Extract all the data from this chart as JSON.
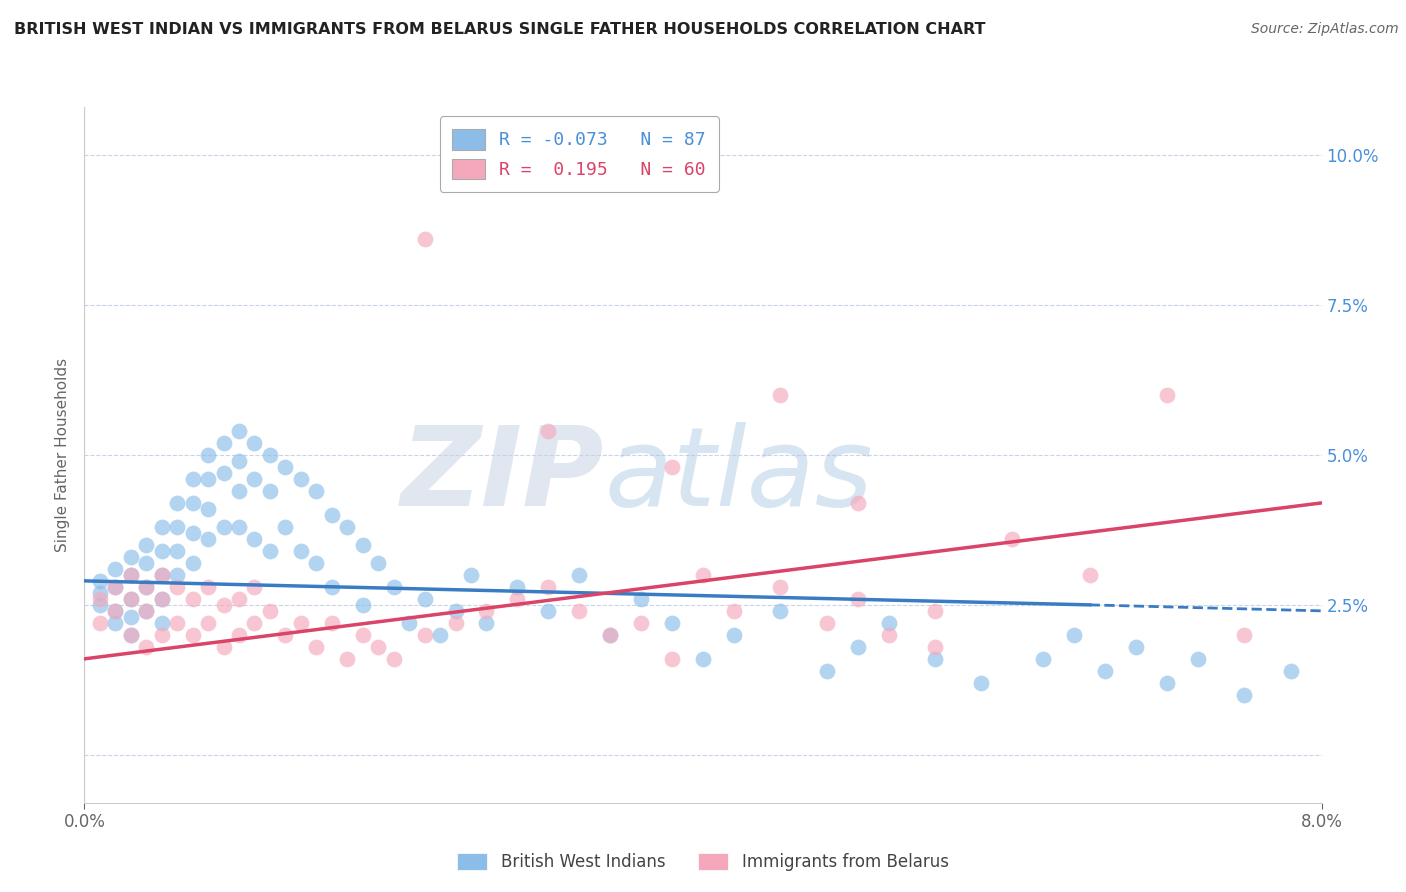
{
  "title": "BRITISH WEST INDIAN VS IMMIGRANTS FROM BELARUS SINGLE FATHER HOUSEHOLDS CORRELATION CHART",
  "source": "Source: ZipAtlas.com",
  "ylabel": "Single Father Households",
  "xlim": [
    0.0,
    0.08
  ],
  "ylim": [
    -0.008,
    0.108
  ],
  "yticks": [
    0.0,
    0.025,
    0.05,
    0.075,
    0.1
  ],
  "ytick_labels": [
    "",
    "2.5%",
    "5.0%",
    "7.5%",
    "10.0%"
  ],
  "xticks": [
    0.0,
    0.08
  ],
  "xtick_labels": [
    "0.0%",
    "8.0%"
  ],
  "legend_label_blue": "British West Indians",
  "legend_label_pink": "Immigrants from Belarus",
  "R_blue": -0.073,
  "N_blue": 87,
  "R_pink": 0.195,
  "N_pink": 60,
  "blue_color": "#8BBDE8",
  "pink_color": "#F5A8BC",
  "blue_line_color": "#3A7CC4",
  "pink_line_color": "#D94468",
  "watermark_color": "#D0DCF0",
  "grid_color": "#C8D4E8",
  "blue_scatter_x": [
    0.001,
    0.001,
    0.001,
    0.002,
    0.002,
    0.002,
    0.002,
    0.003,
    0.003,
    0.003,
    0.003,
    0.003,
    0.004,
    0.004,
    0.004,
    0.004,
    0.005,
    0.005,
    0.005,
    0.005,
    0.005,
    0.006,
    0.006,
    0.006,
    0.006,
    0.007,
    0.007,
    0.007,
    0.007,
    0.008,
    0.008,
    0.008,
    0.008,
    0.009,
    0.009,
    0.009,
    0.01,
    0.01,
    0.01,
    0.01,
    0.011,
    0.011,
    0.011,
    0.012,
    0.012,
    0.012,
    0.013,
    0.013,
    0.014,
    0.014,
    0.015,
    0.015,
    0.016,
    0.016,
    0.017,
    0.018,
    0.018,
    0.019,
    0.02,
    0.021,
    0.022,
    0.023,
    0.024,
    0.025,
    0.026,
    0.028,
    0.03,
    0.032,
    0.034,
    0.036,
    0.038,
    0.04,
    0.042,
    0.045,
    0.048,
    0.05,
    0.052,
    0.055,
    0.058,
    0.062,
    0.064,
    0.066,
    0.068,
    0.07,
    0.072,
    0.075,
    0.078
  ],
  "blue_scatter_y": [
    0.029,
    0.027,
    0.025,
    0.031,
    0.028,
    0.024,
    0.022,
    0.033,
    0.03,
    0.026,
    0.023,
    0.02,
    0.035,
    0.032,
    0.028,
    0.024,
    0.038,
    0.034,
    0.03,
    0.026,
    0.022,
    0.042,
    0.038,
    0.034,
    0.03,
    0.046,
    0.042,
    0.037,
    0.032,
    0.05,
    0.046,
    0.041,
    0.036,
    0.052,
    0.047,
    0.038,
    0.054,
    0.049,
    0.044,
    0.038,
    0.052,
    0.046,
    0.036,
    0.05,
    0.044,
    0.034,
    0.048,
    0.038,
    0.046,
    0.034,
    0.044,
    0.032,
    0.04,
    0.028,
    0.038,
    0.035,
    0.025,
    0.032,
    0.028,
    0.022,
    0.026,
    0.02,
    0.024,
    0.03,
    0.022,
    0.028,
    0.024,
    0.03,
    0.02,
    0.026,
    0.022,
    0.016,
    0.02,
    0.024,
    0.014,
    0.018,
    0.022,
    0.016,
    0.012,
    0.016,
    0.02,
    0.014,
    0.018,
    0.012,
    0.016,
    0.01,
    0.014
  ],
  "pink_scatter_x": [
    0.001,
    0.001,
    0.002,
    0.002,
    0.003,
    0.003,
    0.003,
    0.004,
    0.004,
    0.004,
    0.005,
    0.005,
    0.005,
    0.006,
    0.006,
    0.007,
    0.007,
    0.008,
    0.008,
    0.009,
    0.009,
    0.01,
    0.01,
    0.011,
    0.011,
    0.012,
    0.013,
    0.014,
    0.015,
    0.016,
    0.017,
    0.018,
    0.019,
    0.02,
    0.022,
    0.024,
    0.026,
    0.028,
    0.03,
    0.032,
    0.034,
    0.036,
    0.038,
    0.04,
    0.042,
    0.045,
    0.048,
    0.05,
    0.052,
    0.055,
    0.022,
    0.03,
    0.038,
    0.045,
    0.05,
    0.06,
    0.065,
    0.055,
    0.07,
    0.075
  ],
  "pink_scatter_y": [
    0.026,
    0.022,
    0.028,
    0.024,
    0.03,
    0.026,
    0.02,
    0.028,
    0.024,
    0.018,
    0.03,
    0.026,
    0.02,
    0.028,
    0.022,
    0.026,
    0.02,
    0.028,
    0.022,
    0.025,
    0.018,
    0.026,
    0.02,
    0.028,
    0.022,
    0.024,
    0.02,
    0.022,
    0.018,
    0.022,
    0.016,
    0.02,
    0.018,
    0.016,
    0.02,
    0.022,
    0.024,
    0.026,
    0.028,
    0.024,
    0.02,
    0.022,
    0.016,
    0.03,
    0.024,
    0.028,
    0.022,
    0.026,
    0.02,
    0.018,
    0.086,
    0.054,
    0.048,
    0.06,
    0.042,
    0.036,
    0.03,
    0.024,
    0.06,
    0.02
  ],
  "blue_line_x0": 0.0,
  "blue_line_y0": 0.029,
  "blue_line_x1": 0.065,
  "blue_line_y1": 0.025,
  "blue_line_x1_dashed": 0.08,
  "blue_line_y1_dashed": 0.024,
  "pink_line_x0": 0.0,
  "pink_line_y0": 0.016,
  "pink_line_x1": 0.08,
  "pink_line_y1": 0.042
}
